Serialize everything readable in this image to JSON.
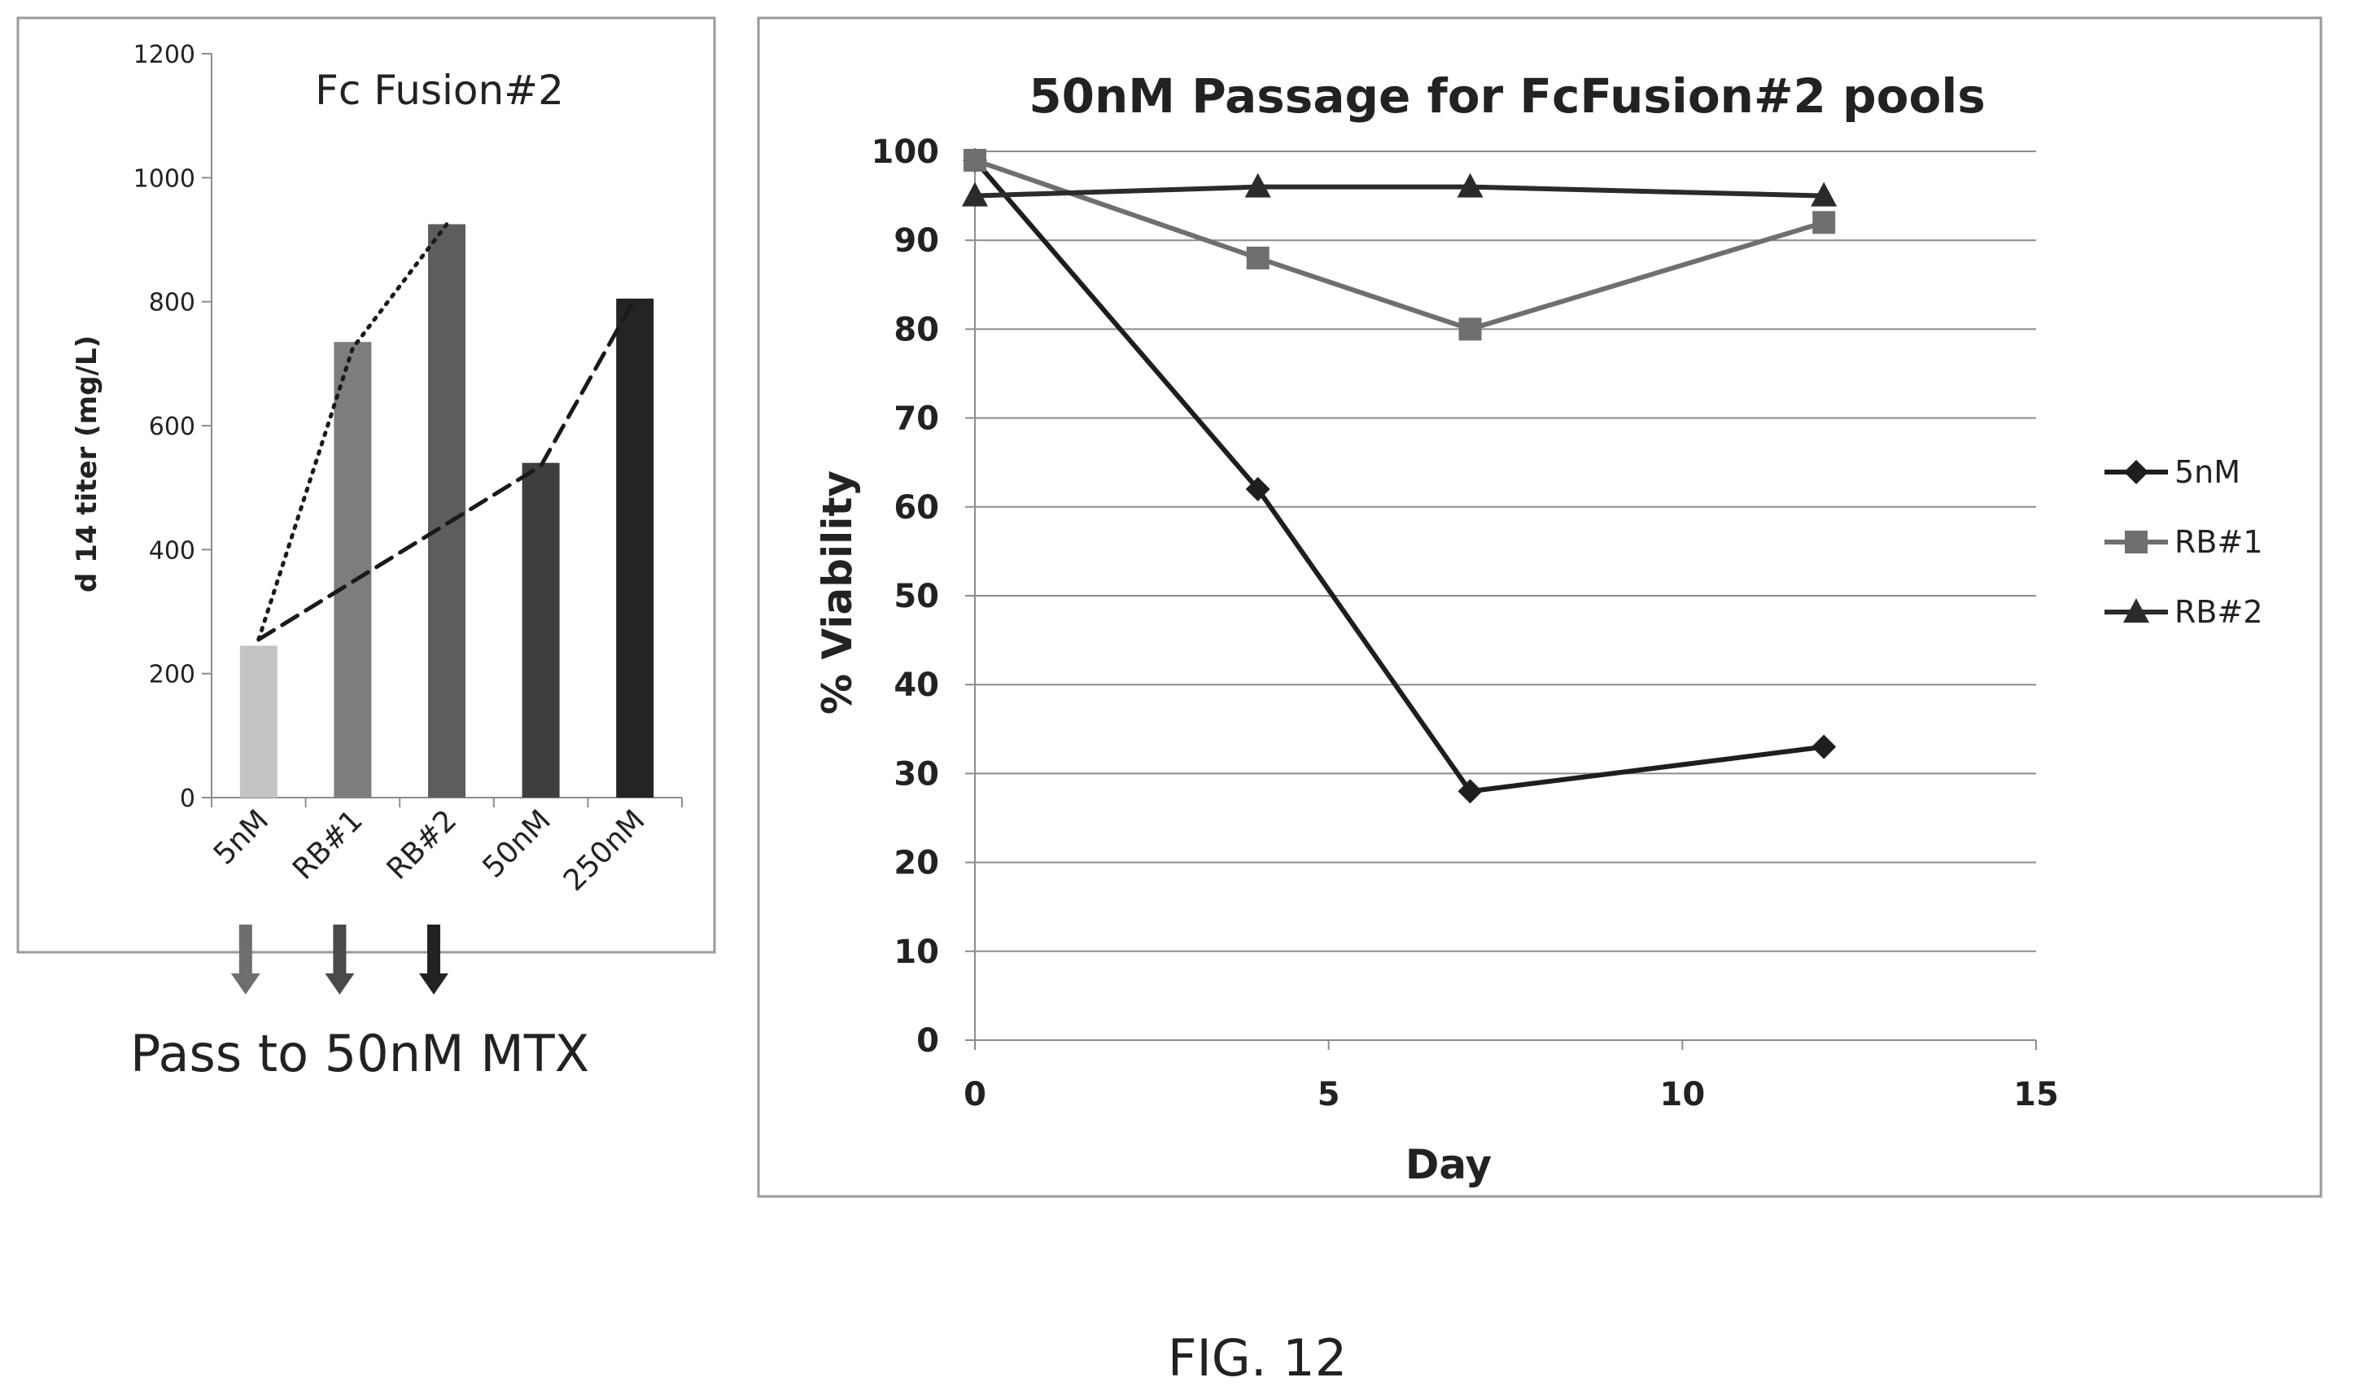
{
  "chart_data": [
    {
      "type": "bar",
      "title": "Fc Fusion#2",
      "xlabel": "",
      "ylabel": "d 14 titer (mg/L)",
      "ylim": [
        0,
        1200
      ],
      "yticks": [
        0,
        200,
        400,
        600,
        800,
        1000,
        1200
      ],
      "categories": [
        "5nM",
        "RB#1",
        "RB#2",
        "50nM",
        "250nM"
      ],
      "values": [
        245,
        735,
        925,
        540,
        805
      ],
      "bar_colors": [
        "#c4c4c4",
        "#7d7d7d",
        "#5d5d5d",
        "#3f3f3f",
        "#242424"
      ],
      "trend_lines": [
        {
          "style": "dotted",
          "points": [
            [
              "5nM",
              255
            ],
            [
              "RB#1",
              725
            ],
            [
              "RB#2",
              925
            ]
          ]
        },
        {
          "style": "dashed",
          "points": [
            [
              "5nM",
              255
            ],
            [
              "50nM",
              535
            ],
            [
              "250nM",
              805
            ]
          ]
        }
      ],
      "arrows_under": [
        "5nM",
        "RB#1",
        "RB#2"
      ],
      "arrow_colors": [
        "#6e6e6e",
        "#4a4a4a",
        "#222222"
      ],
      "annotation": "Pass to 50nM MTX"
    },
    {
      "type": "line",
      "title": "50nM Passage for FcFusion#2 pools",
      "xlabel": "Day",
      "ylabel": "% Viability",
      "xlim": [
        0,
        15
      ],
      "ylim": [
        0,
        100
      ],
      "xticks": [
        0,
        5,
        10,
        15
      ],
      "yticks": [
        0,
        10,
        20,
        30,
        40,
        50,
        60,
        70,
        80,
        90,
        100
      ],
      "grid": "horizontal",
      "legend_position": "right",
      "x": [
        0,
        4,
        7,
        12
      ],
      "series": [
        {
          "name": "5nM",
          "values": [
            99,
            62,
            28,
            33
          ],
          "marker": "diamond",
          "color": "#1e1e1e"
        },
        {
          "name": "RB#1",
          "values": [
            99,
            88,
            80,
            92
          ],
          "marker": "square",
          "color": "#6f6f6f"
        },
        {
          "name": "RB#2",
          "values": [
            95,
            96,
            96,
            95
          ],
          "marker": "triangle",
          "color": "#2b2b2b"
        }
      ]
    }
  ],
  "caption": "FIG. 12"
}
